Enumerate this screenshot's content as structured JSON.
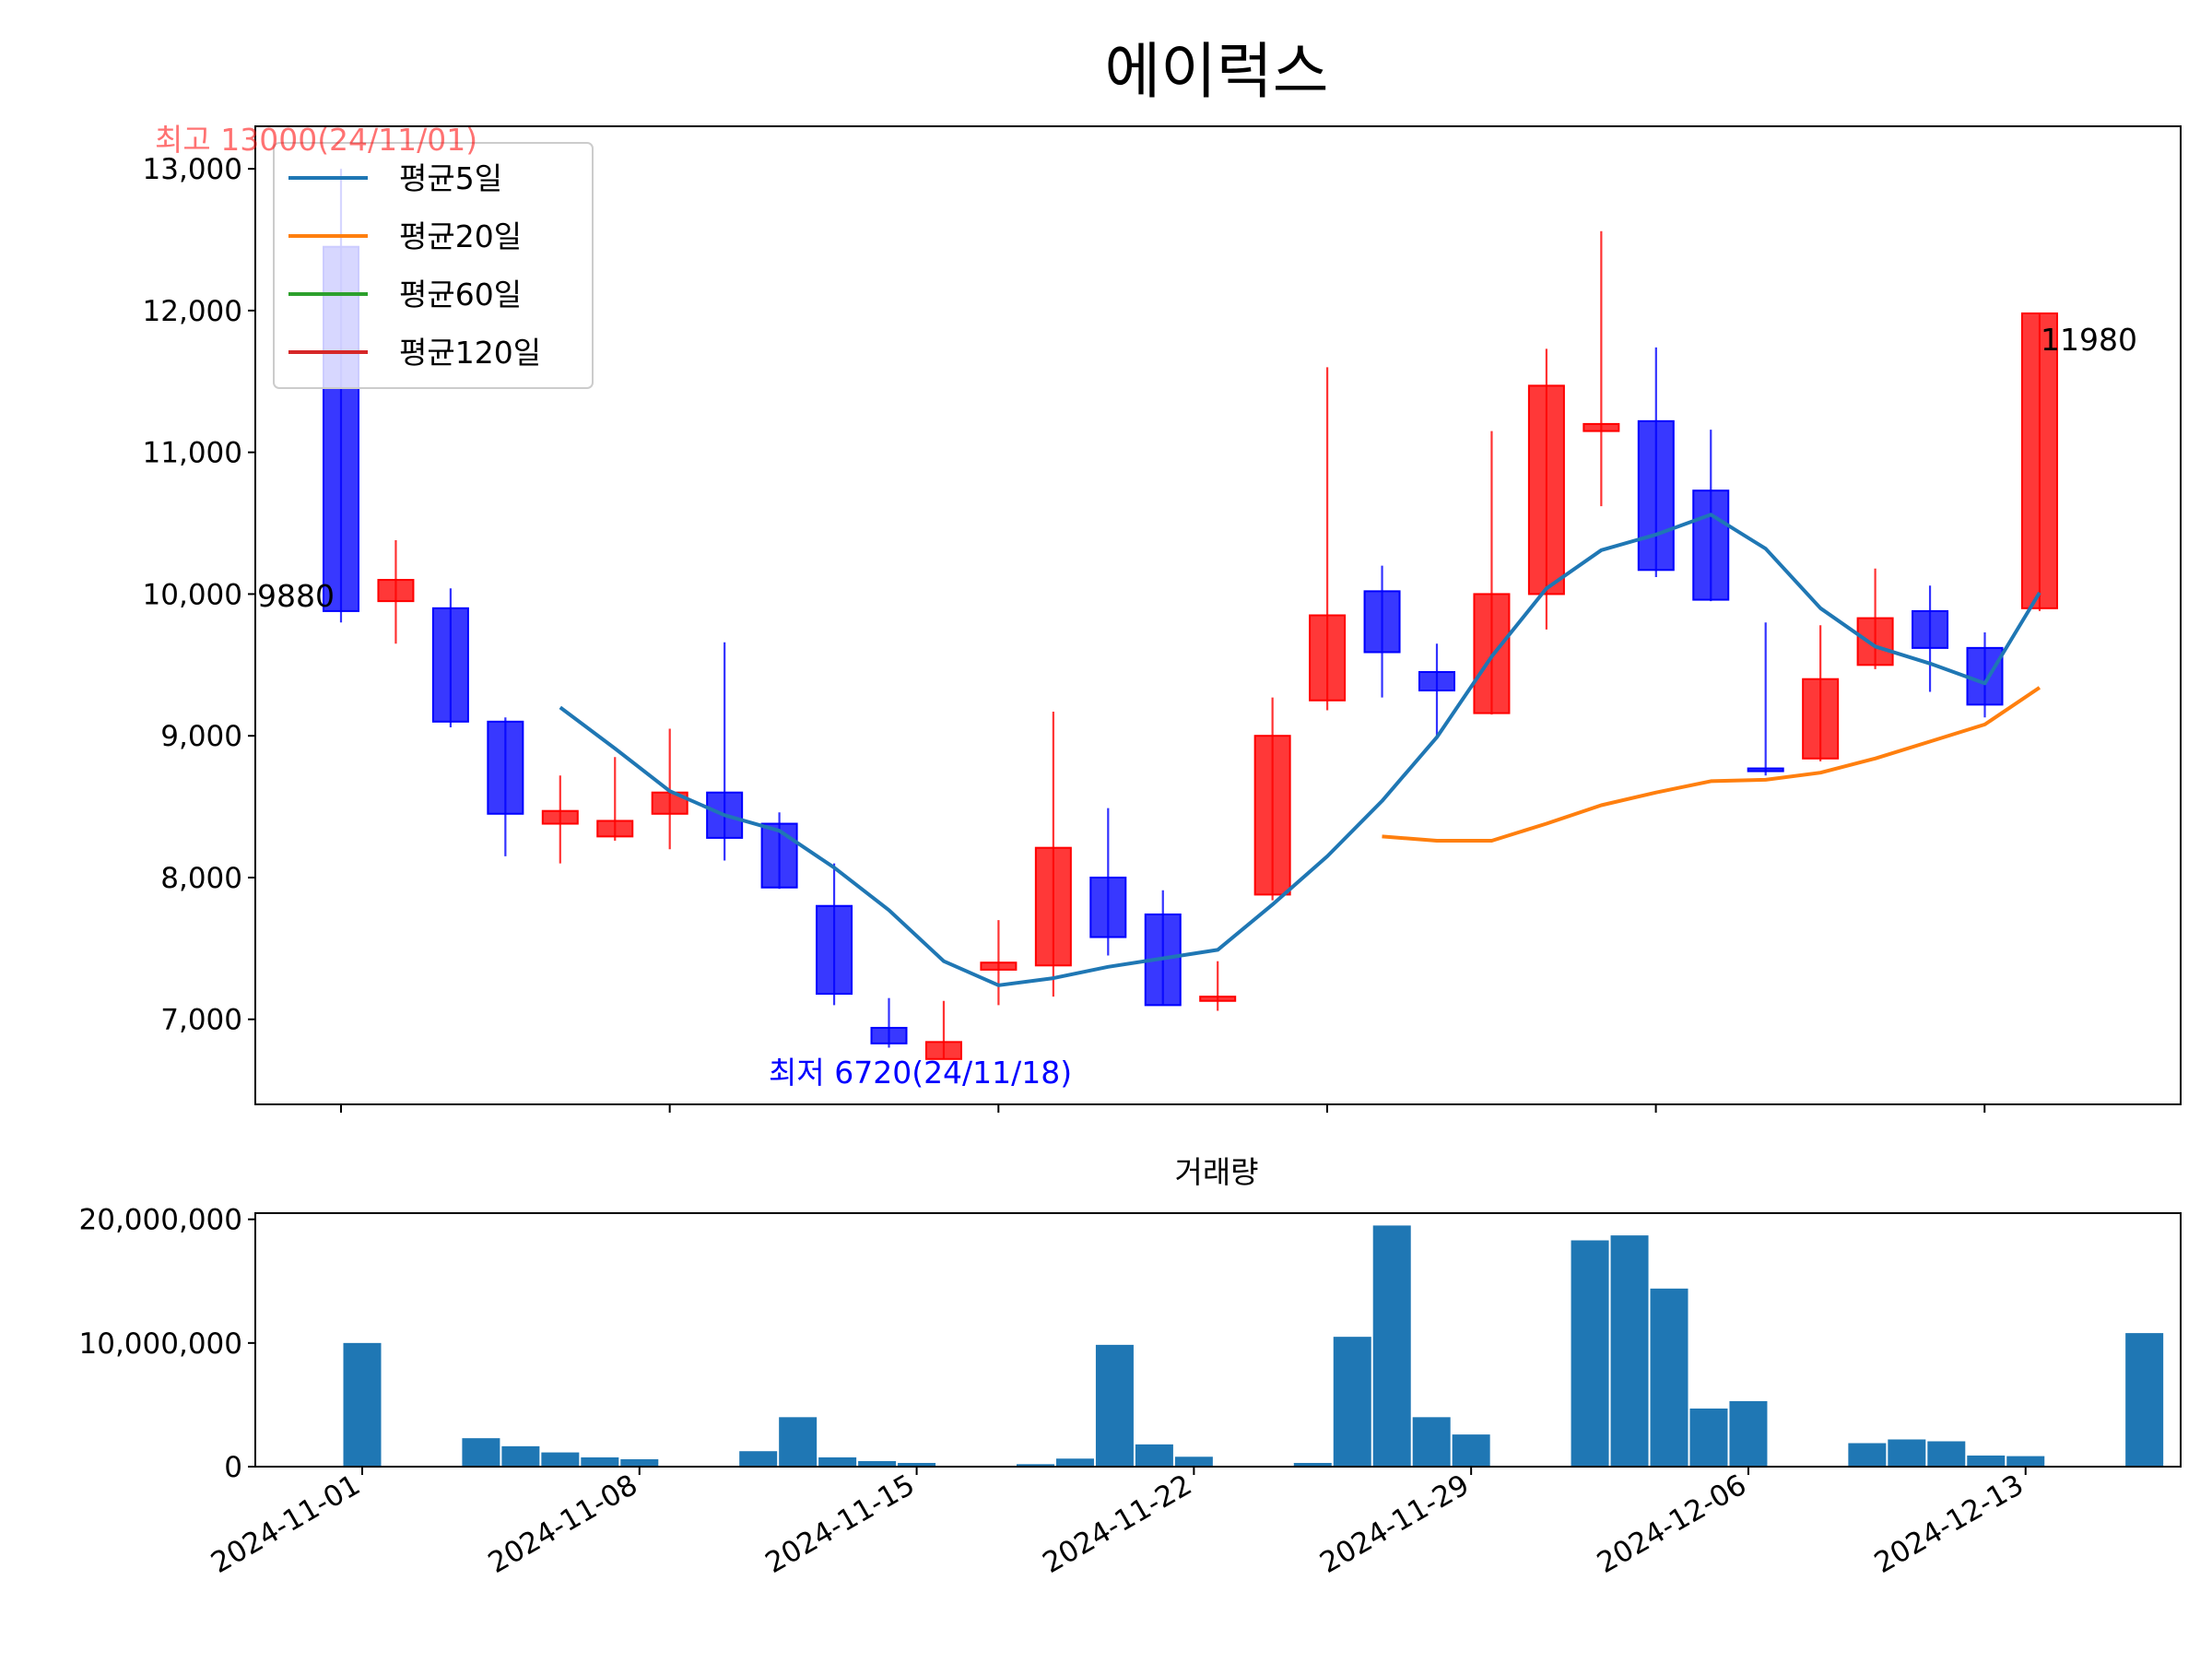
{
  "chart_data": [
    {
      "type": "candlestick",
      "title": "에이럭스",
      "dates": [
        "2024-11-01",
        "2024-11-04",
        "2024-11-05",
        "2024-11-06",
        "2024-11-07",
        "2024-11-08",
        "2024-11-11",
        "2024-11-12",
        "2024-11-13",
        "2024-11-14",
        "2024-11-15",
        "2024-11-18",
        "2024-11-19",
        "2024-11-20",
        "2024-11-21",
        "2024-11-22",
        "2024-11-25",
        "2024-11-26",
        "2024-11-27",
        "2024-11-28",
        "2024-11-29",
        "2024-12-02",
        "2024-12-03",
        "2024-12-04",
        "2024-12-05",
        "2024-12-06",
        "2024-12-09",
        "2024-12-10",
        "2024-12-11",
        "2024-12-12",
        "2024-12-13",
        "2024-12-16"
      ],
      "open": [
        12450,
        9950,
        9900,
        9100,
        8380,
        8290,
        8450,
        8600,
        8380,
        7800,
        6940,
        6720,
        7350,
        7380,
        8000,
        7740,
        7130,
        7880,
        9250,
        10020,
        9450,
        9160,
        10000,
        11150,
        11220,
        10730,
        8770,
        8840,
        9500,
        9880,
        9620,
        9900
      ],
      "high": [
        13000,
        10380,
        10040,
        9130,
        8720,
        8850,
        9050,
        9660,
        8460,
        8100,
        7150,
        7130,
        7700,
        9170,
        8490,
        7910,
        7410,
        9270,
        11600,
        10200,
        9650,
        11150,
        11730,
        12560,
        11740,
        11160,
        9800,
        9780,
        10180,
        10060,
        9730,
        11980
      ],
      "low": [
        9800,
        9650,
        9060,
        8150,
        8100,
        8260,
        8200,
        8120,
        7920,
        7100,
        6800,
        6720,
        7100,
        7160,
        7450,
        7100,
        7060,
        7840,
        9180,
        9270,
        9000,
        9150,
        9750,
        10620,
        10120,
        9950,
        8720,
        8820,
        9470,
        9310,
        9130,
        9880
      ],
      "close": [
        9880,
        10100,
        9100,
        8450,
        8470,
        8400,
        8600,
        8280,
        7930,
        7180,
        6830,
        6840,
        7400,
        8210,
        7580,
        7100,
        7160,
        9000,
        9850,
        9590,
        9320,
        10000,
        11470,
        11200,
        10170,
        9960,
        8760,
        9400,
        9830,
        9620,
        9220,
        11980
      ],
      "volume": [
        10000000,
        2300000,
        1650000,
        1150000,
        750000,
        600000,
        1250000,
        4000000,
        750000,
        450000,
        300000,
        200000,
        650000,
        9850000,
        1800000,
        800000,
        300000,
        10500000,
        19500000,
        4000000,
        2600000,
        18300000,
        18700000,
        14400000,
        4700000,
        5300000,
        1900000,
        2200000,
        2050000,
        900000,
        850000,
        10800000
      ],
      "ma5": [
        null,
        null,
        null,
        null,
        9200,
        8910,
        8610,
        8440,
        8330,
        8070,
        7770,
        7410,
        7240,
        7290,
        7370,
        7430,
        7490,
        7810,
        8150,
        8540,
        8990,
        9560,
        10040,
        10310,
        10420,
        10560,
        10320,
        9900,
        9630,
        9510,
        9370,
        10010
      ],
      "ma20": [
        null,
        null,
        null,
        null,
        null,
        null,
        null,
        null,
        null,
        null,
        null,
        null,
        null,
        null,
        null,
        null,
        null,
        null,
        null,
        8290,
        8260,
        8260,
        8380,
        8510,
        8600,
        8680,
        8690,
        8740,
        8840,
        8960,
        9080,
        9340
      ],
      "ylim": [
        6400,
        13300
      ],
      "yticks": [
        7000,
        8000,
        9000,
        10000,
        11000,
        12000,
        13000
      ],
      "ytick_labels": [
        "7,000",
        "8,000",
        "9,000",
        "10,000",
        "11,000",
        "12,000",
        "13,000"
      ],
      "legend": [
        "평균5일",
        "평균20일",
        "평균60일",
        "평균120일"
      ],
      "legend_colors": [
        "#1f77b4",
        "#ff7f0e",
        "#2ca02c",
        "#d62728"
      ],
      "legend_position": "upper-left",
      "up_color": "#ff0000",
      "down_color": "#0000ff",
      "annotations": {
        "high": "최고 13000(24/11/01)",
        "low": "최저 6720(24/11/18)",
        "first_close": "9880",
        "last_close": "11980"
      }
    },
    {
      "type": "bar",
      "title": "거래량",
      "bar_color": "#1f77b4",
      "ylim": [
        0,
        20500000
      ],
      "yticks": [
        0,
        10000000,
        20000000
      ],
      "ytick_labels": [
        "0",
        "10,000,000",
        "20,000,000"
      ],
      "xtick_dates": [
        "2024-11-01",
        "2024-11-08",
        "2024-11-15",
        "2024-11-22",
        "2024-11-29",
        "2024-12-06",
        "2024-12-13"
      ],
      "xtick_labels": [
        "2024-11-01",
        "2024-11-08",
        "2024-11-15",
        "2024-11-22",
        "2024-11-29",
        "2024-12-06",
        "2024-12-13"
      ]
    }
  ]
}
